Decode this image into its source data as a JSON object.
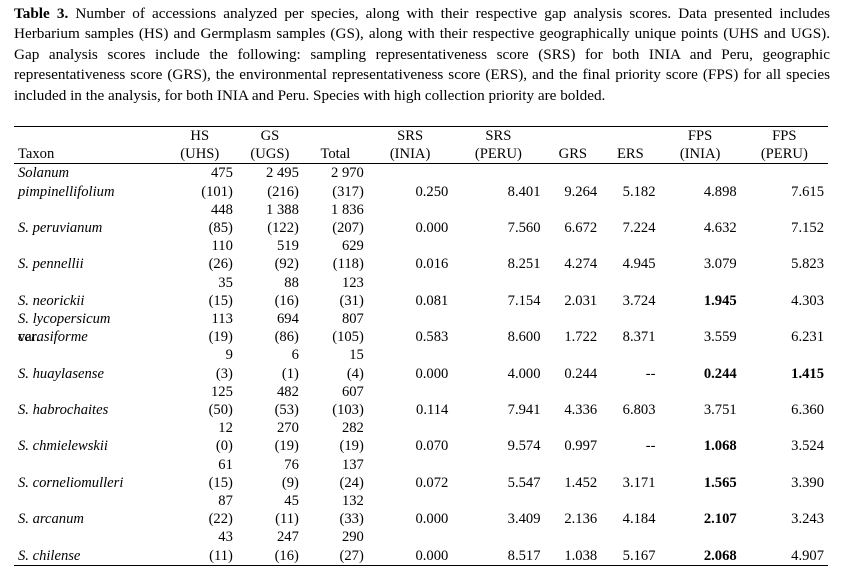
{
  "caption": {
    "label": "Table 3.",
    "text": " Number of accessions analyzed per species, along with their respective gap analysis scores. Data presented includes Herbarium samples (HS) and Germplasm samples (GS), along with their respective geographically unique points (UHS and UGS). Gap analysis scores include the following: sampling representativeness score (SRS) for both INIA and Peru, geographic representativeness score (GRS), the environmental representativeness score (ERS), and the final priority score (FPS) for all species included in the analysis, for both INIA and Peru. Species with high collection priority are bolded."
  },
  "headers": {
    "taxon": "Taxon",
    "hs": [
      "HS",
      "(UHS)"
    ],
    "gs": [
      "GS",
      "(UGS)"
    ],
    "total": "Total",
    "srs_inia": [
      "SRS",
      "(INIA)"
    ],
    "srs_peru": [
      "SRS",
      "(PERU)"
    ],
    "grs": "GRS",
    "ers": "ERS",
    "fps_inia": [
      "FPS",
      "(INIA)"
    ],
    "fps_peru": [
      "FPS",
      "(PERU)"
    ]
  },
  "rows": [
    {
      "taxon1": "Solanum",
      "taxon2": "pimpinellifolium",
      "hs": "475",
      "uhs": "(101)",
      "gs": "2 495",
      "ugs": "(216)",
      "total": "2 970",
      "utotal": "(317)",
      "srs_inia": "0.250",
      "srs_peru": "8.401",
      "grs": "9.264",
      "ers": "5.182",
      "fps_inia": "4.898",
      "fps_peru": "7.615",
      "fps_inia_bold": false,
      "fps_peru_bold": false
    },
    {
      "taxon1": "",
      "taxon2": "S. peruvianum",
      "hs": "448",
      "uhs": "(85)",
      "gs": "1 388",
      "ugs": "(122)",
      "total": "1 836",
      "utotal": "(207)",
      "srs_inia": "0.000",
      "srs_peru": "7.560",
      "grs": "6.672",
      "ers": "7.224",
      "fps_inia": "4.632",
      "fps_peru": "7.152",
      "fps_inia_bold": false,
      "fps_peru_bold": false
    },
    {
      "taxon1": "",
      "taxon2": "S. pennellii",
      "hs": "110",
      "uhs": "(26)",
      "gs": "519",
      "ugs": "(92)",
      "total": "629",
      "utotal": "(118)",
      "srs_inia": "0.016",
      "srs_peru": "8.251",
      "grs": "4.274",
      "ers": "4.945",
      "fps_inia": "3.079",
      "fps_peru": "5.823",
      "fps_inia_bold": false,
      "fps_peru_bold": false
    },
    {
      "taxon1": "",
      "taxon2": "S. neorickii",
      "hs": "35",
      "uhs": "(15)",
      "gs": "88",
      "ugs": "(16)",
      "total": "123",
      "utotal": "(31)",
      "srs_inia": "0.081",
      "srs_peru": "7.154",
      "grs": "2.031",
      "ers": "3.724",
      "fps_inia": "1.945",
      "fps_peru": "4.303",
      "fps_inia_bold": true,
      "fps_peru_bold": false
    },
    {
      "taxon1": "S. lycopersicum",
      "taxon1_suffix": " var.",
      "taxon2": "cerasiforme",
      "hs": "113",
      "uhs": "(19)",
      "gs": "694",
      "ugs": "(86)",
      "total": "807",
      "utotal": "(105)",
      "srs_inia": "0.583",
      "srs_peru": "8.600",
      "grs": "1.722",
      "ers": "8.371",
      "fps_inia": "3.559",
      "fps_peru": "6.231",
      "fps_inia_bold": false,
      "fps_peru_bold": false
    },
    {
      "taxon1": "",
      "taxon2": "S. huaylasense",
      "hs": "9",
      "uhs": "(3)",
      "gs": "6",
      "ugs": "(1)",
      "total": "15",
      "utotal": "(4)",
      "srs_inia": "0.000",
      "srs_peru": "4.000",
      "grs": "0.244",
      "ers": "--",
      "fps_inia": "0.244",
      "fps_peru": "1.415",
      "fps_inia_bold": true,
      "fps_peru_bold": true
    },
    {
      "taxon1": "",
      "taxon2": "S. habrochaites",
      "hs": "125",
      "uhs": "(50)",
      "gs": "482",
      "ugs": "(53)",
      "total": "607",
      "utotal": "(103)",
      "srs_inia": "0.114",
      "srs_peru": "7.941",
      "grs": "4.336",
      "ers": "6.803",
      "fps_inia": "3.751",
      "fps_peru": "6.360",
      "fps_inia_bold": false,
      "fps_peru_bold": false
    },
    {
      "taxon1": "",
      "taxon2": "S. chmielewskii",
      "hs": "12",
      "uhs": "(0)",
      "gs": "270",
      "ugs": "(19)",
      "total": "282",
      "utotal": "(19)",
      "srs_inia": "0.070",
      "srs_peru": "9.574",
      "grs": "0.997",
      "ers": "--",
      "fps_inia": "1.068",
      "fps_peru": "3.524",
      "fps_inia_bold": true,
      "fps_peru_bold": false
    },
    {
      "taxon1": "",
      "taxon2": "S. corneliomulleri",
      "hs": "61",
      "uhs": "(15)",
      "gs": "76",
      "ugs": "(9)",
      "total": "137",
      "utotal": "(24)",
      "srs_inia": "0.072",
      "srs_peru": "5.547",
      "grs": "1.452",
      "ers": "3.171",
      "fps_inia": "1.565",
      "fps_peru": "3.390",
      "fps_inia_bold": true,
      "fps_peru_bold": false
    },
    {
      "taxon1": "",
      "taxon2": "S. arcanum",
      "hs": "87",
      "uhs": "(22)",
      "gs": "45",
      "ugs": "(11)",
      "total": "132",
      "utotal": "(33)",
      "srs_inia": "0.000",
      "srs_peru": "3.409",
      "grs": "2.136",
      "ers": "4.184",
      "fps_inia": "2.107",
      "fps_peru": "3.243",
      "fps_inia_bold": true,
      "fps_peru_bold": false
    },
    {
      "taxon1": "",
      "taxon2": "S. chilense",
      "hs": "43",
      "uhs": "(11)",
      "gs": "247",
      "ugs": "(16)",
      "total": "290",
      "utotal": "(27)",
      "srs_inia": "0.000",
      "srs_peru": "8.517",
      "grs": "1.038",
      "ers": "5.167",
      "fps_inia": "2.068",
      "fps_peru": "4.907",
      "fps_inia_bold": true,
      "fps_peru_bold": false
    }
  ]
}
